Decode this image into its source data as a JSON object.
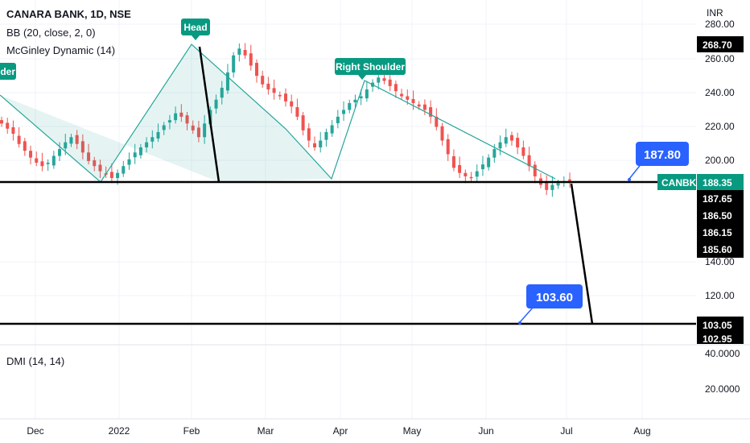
{
  "header": {
    "symbol_line": "CANARA BANK, 1D, NSE",
    "indicator_bb": "BB (20, close, 2, 0)",
    "indicator_mcginley": "McGinley Dynamic (14)",
    "currency": "INR"
  },
  "dmi_pane": {
    "label": "DMI (14, 14)",
    "ticks": [
      "40.0000",
      "20.0000"
    ]
  },
  "colors": {
    "up": "#26a69a",
    "down": "#ef5350",
    "pattern_line": "#26a69a",
    "pattern_fill": "#26a69a",
    "trend_line": "#000000",
    "callout": "#2962ff",
    "label_bg": "#089981"
  },
  "pattern_labels": {
    "left_shoulder_partial": "lder",
    "head": "Head",
    "right_shoulder": "Right Shoulder"
  },
  "callouts": {
    "upper_target": "187.80",
    "lower_target": "103.60"
  },
  "price_tags": {
    "last_symbol": "CANBK",
    "last_value": "188.35",
    "top_value": "268.70",
    "stack_values": [
      "187.65",
      "186.50",
      "186.15",
      "185.60"
    ],
    "bottom_values": [
      "103.05",
      "102.95"
    ]
  },
  "chart_data": {
    "type": "candlestick",
    "title": "CANARA BANK, 1D, NSE",
    "y_axis_ticks": [
      120,
      140,
      200,
      220,
      240,
      260,
      280
    ],
    "y_tick_labels": [
      "120.00",
      "140.00",
      "200.00",
      "220.00",
      "240.00",
      "260.00",
      "280.00"
    ],
    "x_axis_labels": [
      "Dec",
      "2022",
      "Feb",
      "Mar",
      "Apr",
      "May",
      "Jun",
      "Jul",
      "Aug"
    ],
    "neckline": 188.35,
    "target_level": 103.6,
    "head_high": 268.7,
    "series_closes": [
      222,
      219,
      216,
      210,
      206,
      202,
      199,
      197,
      199,
      203,
      207,
      211,
      214,
      210,
      205,
      200,
      197,
      194,
      192,
      190,
      193,
      197,
      201,
      205,
      208,
      211,
      214,
      217,
      221,
      224,
      228,
      226,
      222,
      218,
      214,
      222,
      230,
      236,
      243,
      252,
      262,
      266,
      262,
      256,
      250,
      245,
      242,
      240,
      238,
      235,
      232,
      226,
      218,
      212,
      208,
      212,
      217,
      221,
      226,
      230,
      234,
      236,
      238,
      242,
      246,
      249,
      247,
      244,
      241,
      238,
      236,
      234,
      232,
      230,
      226,
      220,
      212,
      204,
      196,
      193,
      191,
      190,
      194,
      198,
      202,
      207,
      211,
      214,
      212,
      208,
      203,
      197,
      191,
      186,
      183,
      186,
      187,
      188,
      188.35
    ]
  }
}
